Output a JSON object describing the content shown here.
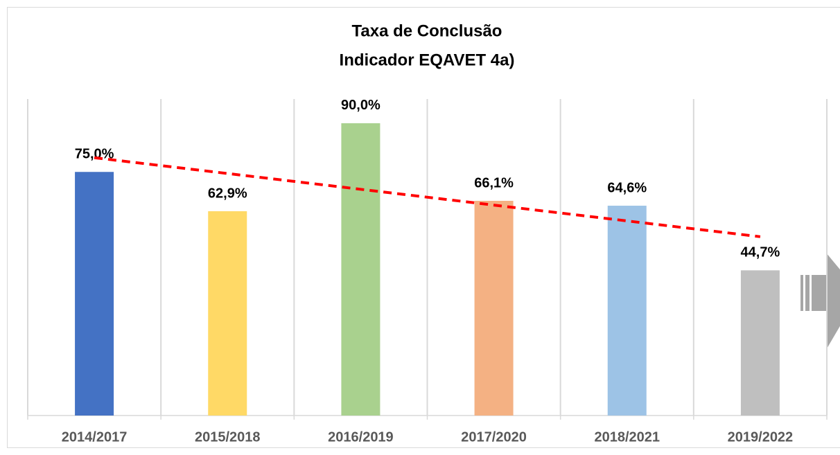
{
  "chart_data": {
    "type": "bar",
    "title": [
      "Taxa de Conclusão",
      "Indicador EQAVET 4a)"
    ],
    "categories": [
      "2014/2017",
      "2015/2018",
      "2016/2019",
      "2017/2020",
      "2018/2021",
      "2019/2022"
    ],
    "values": [
      75.0,
      62.9,
      90.0,
      66.1,
      64.6,
      44.7
    ],
    "value_labels": [
      "75,0%",
      "62,9%",
      "90,0%",
      "66,1%",
      "64,6%",
      "44,7%"
    ],
    "colors": [
      "#4472c4",
      "#ffd966",
      "#a9d18e",
      "#f4b183",
      "#9dc3e6",
      "#bfbfbf"
    ],
    "ylim": [
      0,
      100
    ],
    "trendline": {
      "type": "linear",
      "color": "#ff0000"
    }
  }
}
